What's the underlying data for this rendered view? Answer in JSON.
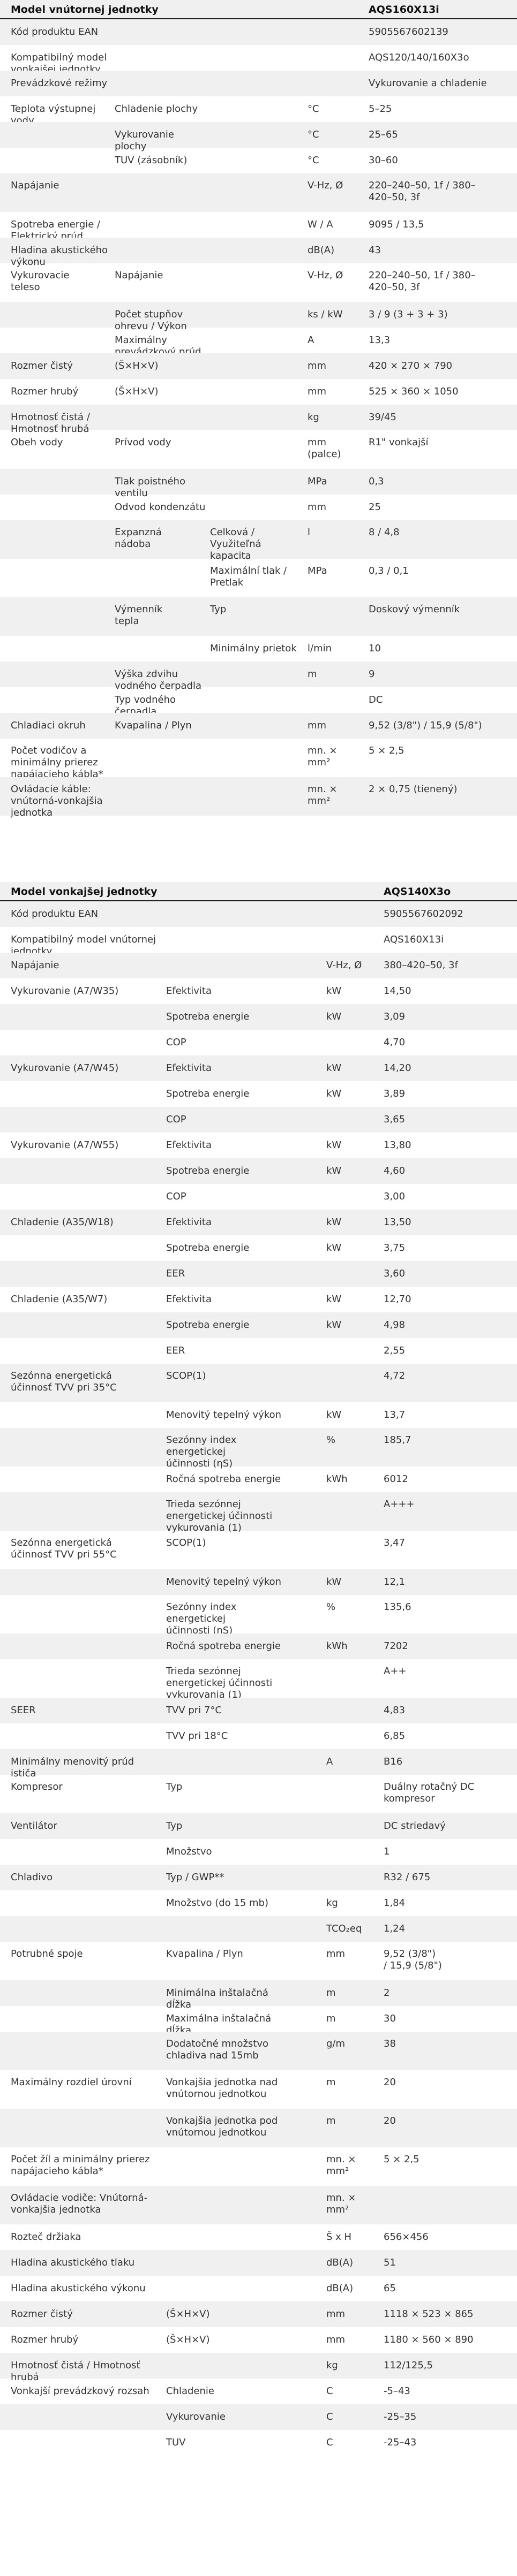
{
  "indoor": {
    "title": "Model vnútornej jednotky",
    "model": "AQS160X13i",
    "rows": [
      {
        "cells": [
          "Kód produktu EAN",
          "",
          "",
          "",
          "5905567602139"
        ]
      },
      {
        "cells": [
          "Kompatibilný model vonkajšej jednotky",
          "",
          "",
          "",
          "AQS120/140/160X3o"
        ]
      },
      {
        "cells": [
          "Prevádzkové režimy",
          "",
          "",
          "",
          "Vykurovanie a chladenie"
        ]
      },
      {
        "cells": [
          "Teplota výstupnej\nvody",
          "Chladenie plochy",
          "",
          "°C",
          "5–25"
        ]
      },
      {
        "cells": [
          "",
          "Vykurovanie plochy",
          "",
          "°C",
          "25–65"
        ]
      },
      {
        "cells": [
          "",
          "TUV (zásobník)",
          "",
          "°C",
          "30–60"
        ]
      },
      {
        "cells": [
          "Napájanie",
          "",
          "",
          "V-Hz, Ø",
          "220–240–50, 1f / 380–\n420–50, 3f"
        ]
      },
      {
        "cells": [
          "Spotreba energie / Elektrický prúd",
          "",
          "",
          "W / A",
          "9095 / 13,5"
        ]
      },
      {
        "cells": [
          "Hladina akustického výkonu",
          "",
          "",
          "dB(A)",
          "43"
        ]
      },
      {
        "cells": [
          "Vykurovacie\nteleso",
          "Napájanie",
          "",
          "V-Hz, Ø",
          "220–240–50, 1f / 380–\n420–50, 3f"
        ]
      },
      {
        "cells": [
          "",
          "Počet stupňov ohrevu / Výkon",
          "",
          "ks / kW",
          "3 / 9 (3 + 3 + 3)"
        ]
      },
      {
        "cells": [
          "",
          "Maximálny prevádzkový prúd",
          "",
          "A",
          "13,3"
        ]
      },
      {
        "cells": [
          "Rozmer čistý",
          "(Š×H×V)",
          "",
          "mm",
          "420 × 270 × 790"
        ]
      },
      {
        "cells": [
          "Rozmer hrubý",
          "(Š×H×V)",
          "",
          "mm",
          "525 × 360 × 1050"
        ]
      },
      {
        "cells": [
          "Hmotnosť čistá / Hmotnosť hrubá",
          "",
          "",
          "kg",
          "39/45"
        ]
      },
      {
        "cells": [
          "Obeh vody",
          "Prívod vody",
          "",
          "mm\n(palce)",
          "R1\" vonkajší"
        ]
      },
      {
        "cells": [
          "",
          "Tlak poistného ventilu",
          "",
          "MPa",
          "0,3"
        ]
      },
      {
        "cells": [
          "",
          "Odvod kondenzátu",
          "",
          "mm",
          "25"
        ]
      },
      {
        "cells": [
          "",
          "Expanzná\nnádoba",
          "Celková / Využiteľná\nkapacita",
          "l",
          "8 / 4,8"
        ]
      },
      {
        "cells": [
          "",
          "",
          "Maximální tlak /\nPretlak",
          "MPa",
          "0,3 / 0,1"
        ]
      },
      {
        "cells": [
          "",
          "Výmenník\ntepla",
          "Typ",
          "",
          "Doskový výmenník"
        ]
      },
      {
        "cells": [
          "",
          "",
          "Minimálny prietok",
          "l/min",
          "10"
        ]
      },
      {
        "cells": [
          "",
          "Výška zdvihu vodného čerpadla",
          "",
          "m",
          "9"
        ]
      },
      {
        "cells": [
          "",
          "Typ vodného čerpadla",
          "",
          "",
          "DC"
        ]
      },
      {
        "cells": [
          "Chladiaci okruh",
          "Kvapalina / Plyn",
          "",
          "mm",
          "9,52 (3/8\") / 15,9 (5/8\")"
        ]
      },
      {
        "cells": [
          "Počet vodičov a minimálny prierez napájacieho kábla*",
          "",
          "",
          "mn. ×\nmm²",
          "5 × 2,5"
        ]
      },
      {
        "cells": [
          "Ovládacie káble: vnútorná-vonkajšia jednotka",
          "",
          "",
          "mn. ×\nmm²",
          "2 × 0,75 (tienený)"
        ]
      }
    ]
  },
  "outdoor": {
    "title": "Model vonkajšej jednotky",
    "model": "AQS140X3o",
    "rows": [
      {
        "cells": [
          "Kód produktu EAN",
          "",
          "",
          "",
          "5905567602092"
        ]
      },
      {
        "cells": [
          "Kompatibilný model vnútornej jednotky",
          "",
          "",
          "",
          "AQS160X13i"
        ]
      },
      {
        "cells": [
          "Napájanie",
          "",
          "",
          "V-Hz, Ø",
          "380–420–50, 3f"
        ]
      },
      {
        "cells": [
          "Vykurovanie (A7/W35)",
          "Efektivita",
          "",
          "kW",
          "14,50"
        ]
      },
      {
        "cells": [
          "",
          "Spotreba energie",
          "",
          "kW",
          "3,09"
        ]
      },
      {
        "cells": [
          "",
          "COP",
          "",
          "",
          "4,70"
        ]
      },
      {
        "cells": [
          "Vykurovanie (A7/W45)",
          "Efektivita",
          "",
          "kW",
          "14,20"
        ]
      },
      {
        "cells": [
          "",
          "Spotreba energie",
          "",
          "kW",
          "3,89"
        ]
      },
      {
        "cells": [
          "",
          "COP",
          "",
          "",
          "3,65"
        ]
      },
      {
        "cells": [
          "Vykurovanie (A7/W55)",
          "Efektivita",
          "",
          "kW",
          "13,80"
        ]
      },
      {
        "cells": [
          "",
          "Spotreba energie",
          "",
          "kW",
          "4,60"
        ]
      },
      {
        "cells": [
          "",
          "COP",
          "",
          "",
          "3,00"
        ]
      },
      {
        "cells": [
          "Chladenie (A35/W18)",
          "Efektivita",
          "",
          "kW",
          "13,50"
        ]
      },
      {
        "cells": [
          "",
          "Spotreba energie",
          "",
          "kW",
          "3,75"
        ]
      },
      {
        "cells": [
          "",
          "EER",
          "",
          "",
          "3,60"
        ]
      },
      {
        "cells": [
          "Chladenie (A35/W7)",
          "Efektivita",
          "",
          "kW",
          "12,70"
        ]
      },
      {
        "cells": [
          "",
          "Spotreba energie",
          "",
          "kW",
          "4,98"
        ]
      },
      {
        "cells": [
          "",
          "EER",
          "",
          "",
          "2,55"
        ]
      },
      {
        "cells": [
          "Sezónna energetická\núčinnosť TVV pri 35°C",
          "SCOP(1)",
          "",
          "",
          "4,72"
        ]
      },
      {
        "cells": [
          "",
          "Menovitý tepelný výkon",
          "",
          "kW",
          "13,7"
        ]
      },
      {
        "cells": [
          "",
          "Sezónny index energetickej\núčinnosti (ηS)",
          "",
          "%",
          "185,7"
        ]
      },
      {
        "cells": [
          "",
          "Ročná spotreba energie",
          "",
          "kWh",
          "6012"
        ]
      },
      {
        "cells": [
          "",
          "Trieda sezónnej energetickej účinnosti\nvykurovania (1)",
          "",
          "",
          "A+++"
        ]
      },
      {
        "cells": [
          "Sezónna energetická\núčinnosť TVV pri 55°C",
          "SCOP(1)",
          "",
          "",
          "3,47"
        ]
      },
      {
        "cells": [
          "",
          "Menovitý tepelný výkon",
          "",
          "kW",
          "12,1"
        ]
      },
      {
        "cells": [
          "",
          "Sezónny index energetickej\núčinnosti (ηS)",
          "",
          "%",
          "135,6"
        ]
      },
      {
        "cells": [
          "",
          "Ročná spotreba energie",
          "",
          "kWh",
          "7202"
        ]
      },
      {
        "cells": [
          "",
          "Trieda sezónnej energetickej účinnosti\nvykurovania (1)",
          "",
          "",
          "A++"
        ]
      },
      {
        "cells": [
          "SEER",
          "TVV pri 7°C",
          "",
          "",
          "4,83"
        ]
      },
      {
        "cells": [
          "",
          "TVV pri 18°C",
          "",
          "",
          "6,85"
        ]
      },
      {
        "cells": [
          "Minimálny menovitý prúd ističa",
          "",
          "",
          "A",
          "B16"
        ]
      },
      {
        "cells": [
          "Kompresor",
          "Typ",
          "",
          "",
          "Duálny rotačný DC\nkompresor"
        ]
      },
      {
        "cells": [
          "Ventilátor",
          "Typ",
          "",
          "",
          "DC striedavý"
        ]
      },
      {
        "cells": [
          "",
          "Množstvo",
          "",
          "",
          "1"
        ]
      },
      {
        "cells": [
          "Chladivo",
          "Typ / GWP**",
          "",
          "",
          "R32 / 675"
        ]
      },
      {
        "cells": [
          "",
          "Množstvo (do 15 mb)",
          "",
          "kg",
          "1,84"
        ]
      },
      {
        "cells": [
          "",
          "",
          "",
          "TCO₂eq",
          "1,24"
        ]
      },
      {
        "cells": [
          "Potrubné spoje",
          "Kvapalina / Plyn",
          "",
          "mm",
          "9,52 (3/8\")\n/ 15,9 (5/8\")"
        ]
      },
      {
        "cells": [
          "",
          "Minimálna inštalačná dĺžka",
          "",
          "m",
          "2"
        ]
      },
      {
        "cells": [
          "",
          "Maximálna inštalačná dĺžka",
          "",
          "m",
          "30"
        ]
      },
      {
        "cells": [
          "",
          "Dodatočné množstvo\nchladiva nad 15mb",
          "",
          "g/m",
          "38"
        ]
      },
      {
        "cells": [
          "Maximálny rozdiel úrovní",
          "Vonkajšia jednotka nad\nvnútornou jednotkou",
          "",
          "m",
          "20"
        ]
      },
      {
        "cells": [
          "",
          "Vonkajšia jednotka pod\nvnútornou jednotkou",
          "",
          "m",
          "20"
        ]
      },
      {
        "cells": [
          "Počet žíl a minimálny prierez napájacieho kábla*",
          "",
          "",
          "mn. ×\nmm²",
          "5 × 2,5"
        ]
      },
      {
        "cells": [
          "Ovládacie vodiče: Vnútorná-vonkajšia jednotka",
          "",
          "",
          "mn. ×\nmm²",
          ""
        ]
      },
      {
        "cells": [
          "Rozteč držiaka",
          "",
          "",
          "Š x H",
          "656×456"
        ]
      },
      {
        "cells": [
          "Hladina akustického tlaku",
          "",
          "",
          "dB(A)",
          "51"
        ]
      },
      {
        "cells": [
          "Hladina akustického výkonu",
          "",
          "",
          "dB(A)",
          "65"
        ]
      },
      {
        "cells": [
          "Rozmer čistý",
          "(Š×H×V)",
          "",
          "mm",
          "1118 × 523 × 865"
        ]
      },
      {
        "cells": [
          "Rozmer hrubý",
          "(Š×H×V)",
          "",
          "mm",
          "1180 × 560 × 890"
        ]
      },
      {
        "cells": [
          "Hmotnosť čistá / Hmotnosť hrubá",
          "",
          "",
          "kg",
          "112/125,5"
        ]
      },
      {
        "cells": [
          "Vonkajší prevádzkový rozsah",
          "Chladenie",
          "",
          "C",
          "-5–43"
        ]
      },
      {
        "cells": [
          "",
          "Vykurovanie",
          "",
          "C",
          "-25–35"
        ]
      },
      {
        "cells": [
          "",
          "TUV",
          "",
          "C",
          "-25–43"
        ]
      }
    ]
  }
}
